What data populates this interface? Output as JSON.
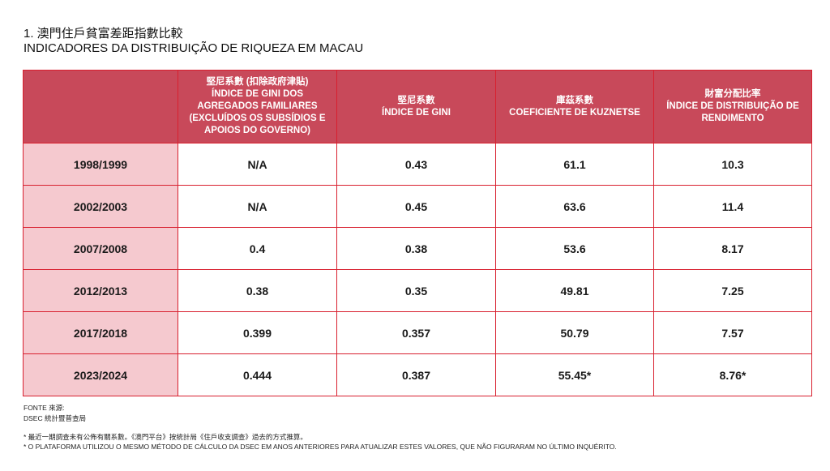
{
  "title": {
    "line1": "1. 澳門住戶貧富差距指數比較",
    "line2": "INDICADORES DA DISTRIBUIÇÃO DE RIQUEZA EM MACAU"
  },
  "chart_data": {
    "type": "table",
    "columns": [
      {
        "zh": "堅尼系數 (扣除政府津貼)",
        "pt": "ÍNDICE DE GINI DOS AGREGADOS FAMILIARES (EXCLUÍDOS OS SUBSÍDIOS E APOIOS DO GOVERNO)"
      },
      {
        "zh": "堅尼系數",
        "pt": "ÍNDICE DE GINI"
      },
      {
        "zh": "庫茲系數",
        "pt": "COEFICIENTE DE KUZNETSE"
      },
      {
        "zh": "財富分配比率",
        "pt": "ÍNDICE DE DISTRIBUIÇÃO DE RENDIMENTO"
      }
    ],
    "rows": [
      {
        "period": "1998/1999",
        "values": [
          "N/A",
          "0.43",
          "61.1",
          "10.3"
        ]
      },
      {
        "period": "2002/2003",
        "values": [
          "N/A",
          "0.45",
          "63.6",
          "11.4"
        ]
      },
      {
        "period": "2007/2008",
        "values": [
          "0.4",
          "0.38",
          "53.6",
          "8.17"
        ]
      },
      {
        "period": "2012/2013",
        "values": [
          "0.38",
          "0.35",
          "49.81",
          "7.25"
        ]
      },
      {
        "period": "2017/2018",
        "values": [
          "0.399",
          "0.357",
          "50.79",
          "7.57"
        ]
      },
      {
        "period": "2023/2024",
        "values": [
          "0.444",
          "0.387",
          "55.45*",
          "8.76*"
        ]
      }
    ]
  },
  "footer": {
    "source_label": "FONTE 來源:",
    "source": "DSEC 統計暨普查局",
    "note_zh": "* 最近一期調查未有公佈有關系數。《澳門平台》按統計局《住戶收支調查》過去的方式推算。",
    "note_pt": "* O PLATAFORMA UTILIZOU O MESMO MÉTODO DE CÁLCULO DA DSEC EM ANOS ANTERIORES PARA ATUALIZAR ESTES VALORES, QUE NÃO FIGURARAM NO ÚLTIMO INQUÉRITO."
  },
  "colors": {
    "header_bg": "#c8495a",
    "row_label_bg": "#f5c9cf",
    "border": "#d8202f"
  }
}
